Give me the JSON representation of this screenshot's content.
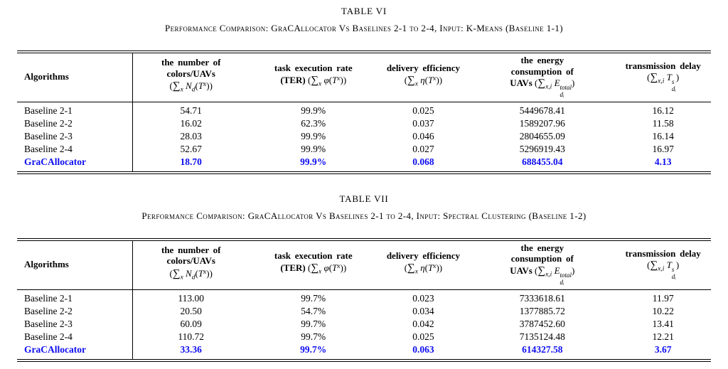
{
  "page": {
    "background_color": "#ffffff",
    "text_color": "#000000",
    "highlight_color": "#0d0df2"
  },
  "columns": [
    {
      "id": "algorithms",
      "label_lines": [
        "Algorithms"
      ],
      "formula": null
    },
    {
      "id": "num-colors-uavs",
      "label_lines": [
        "the number of",
        "colors/UAVs"
      ],
      "formula": [
        {
          "t": "("
        },
        {
          "t": "∑",
          "c": "sum"
        },
        {
          "t": "x",
          "c": "sub"
        },
        {
          "t": " "
        },
        {
          "t": "N",
          "c": "it"
        },
        {
          "t": "d",
          "c": "sub"
        },
        {
          "t": "("
        },
        {
          "t": "T",
          "c": "it"
        },
        {
          "t": "x",
          "c": "sup"
        },
        {
          "t": "))"
        }
      ]
    },
    {
      "id": "task-execution-rate",
      "label_lines": [
        "task execution rate"
      ],
      "formula": [
        {
          "t": "(TER) ",
          "c": "b"
        },
        {
          "t": "("
        },
        {
          "t": "∑",
          "c": "sum"
        },
        {
          "t": "x",
          "c": "sub"
        },
        {
          "t": " "
        },
        {
          "t": "φ",
          "c": "it"
        },
        {
          "t": "("
        },
        {
          "t": "T",
          "c": "it"
        },
        {
          "t": "x",
          "c": "sup"
        },
        {
          "t": "))"
        }
      ]
    },
    {
      "id": "delivery-efficiency",
      "label_lines": [
        "delivery efficiency"
      ],
      "formula": [
        {
          "t": "("
        },
        {
          "t": "∑",
          "c": "sum"
        },
        {
          "t": "x",
          "c": "sub"
        },
        {
          "t": " "
        },
        {
          "t": "η",
          "c": "it"
        },
        {
          "t": "("
        },
        {
          "t": "T",
          "c": "it"
        },
        {
          "t": "x",
          "c": "sup"
        },
        {
          "t": "))"
        }
      ]
    },
    {
      "id": "energy-consumption",
      "label_lines": [
        "the energy",
        "consumption of"
      ],
      "formula": [
        {
          "t": "UAVs ",
          "c": "b"
        },
        {
          "t": "("
        },
        {
          "t": "∑",
          "c": "sum"
        },
        {
          "t": "x,i",
          "c": "sub"
        },
        {
          "t": " "
        },
        {
          "t": "E",
          "c": "it"
        },
        {
          "sup": "total",
          "sub": "dᵢ"
        },
        {
          "t": ")"
        }
      ]
    },
    {
      "id": "transmission-delay",
      "label_lines": [
        "transmission delay"
      ],
      "formula": [
        {
          "t": "("
        },
        {
          "t": "∑",
          "c": "sum"
        },
        {
          "t": "x,i",
          "c": "sub"
        },
        {
          "t": " "
        },
        {
          "t": "T",
          "c": "it"
        },
        {
          "sup": "s",
          "sub": "dᵢ"
        },
        {
          "t": ")"
        }
      ]
    }
  ],
  "tables": [
    {
      "title": "TABLE VI",
      "caption": "Performance Comparison: GraCAllocator Vs Baselines 2-1 to 2-4, Input: K-Means (Baseline 1-1)",
      "rows": [
        {
          "algorithm": "Baseline 2-1",
          "values": [
            "54.71",
            "99.9%",
            "0.025",
            "5449678.41",
            "16.12"
          ],
          "highlight": false
        },
        {
          "algorithm": "Baseline 2-2",
          "values": [
            "16.02",
            "62.3%",
            "0.037",
            "1589207.96",
            "11.58"
          ],
          "highlight": false
        },
        {
          "algorithm": "Baseline 2-3",
          "values": [
            "28.03",
            "99.9%",
            "0.046",
            "2804655.09",
            "16.14"
          ],
          "highlight": false
        },
        {
          "algorithm": "Baseline 2-4",
          "values": [
            "52.67",
            "99.9%",
            "0.027",
            "5296919.43",
            "16.97"
          ],
          "highlight": false
        },
        {
          "algorithm": "GraCAllocator",
          "values": [
            "18.70",
            "99.9%",
            "0.068",
            "688455.04",
            "4.13"
          ],
          "highlight": true
        }
      ]
    },
    {
      "title": "TABLE VII",
      "caption": "Performance Comparison: GraCAllocator Vs Baselines 2-1 to 2-4, Input: Spectral Clustering (Baseline 1-2)",
      "rows": [
        {
          "algorithm": "Baseline 2-1",
          "values": [
            "113.00",
            "99.7%",
            "0.023",
            "7333618.61",
            "11.97"
          ],
          "highlight": false
        },
        {
          "algorithm": "Baseline 2-2",
          "values": [
            "20.50",
            "54.7%",
            "0.034",
            "1377885.72",
            "10.22"
          ],
          "highlight": false
        },
        {
          "algorithm": "Baseline 2-3",
          "values": [
            "60.09",
            "99.7%",
            "0.042",
            "3787452.60",
            "13.41"
          ],
          "highlight": false
        },
        {
          "algorithm": "Baseline 2-4",
          "values": [
            "110.72",
            "99.7%",
            "0.025",
            "7135124.48",
            "12.21"
          ],
          "highlight": false
        },
        {
          "algorithm": "GraCAllocator",
          "values": [
            "33.36",
            "99.7%",
            "0.063",
            "614327.58",
            "3.67"
          ],
          "highlight": true
        }
      ]
    }
  ]
}
